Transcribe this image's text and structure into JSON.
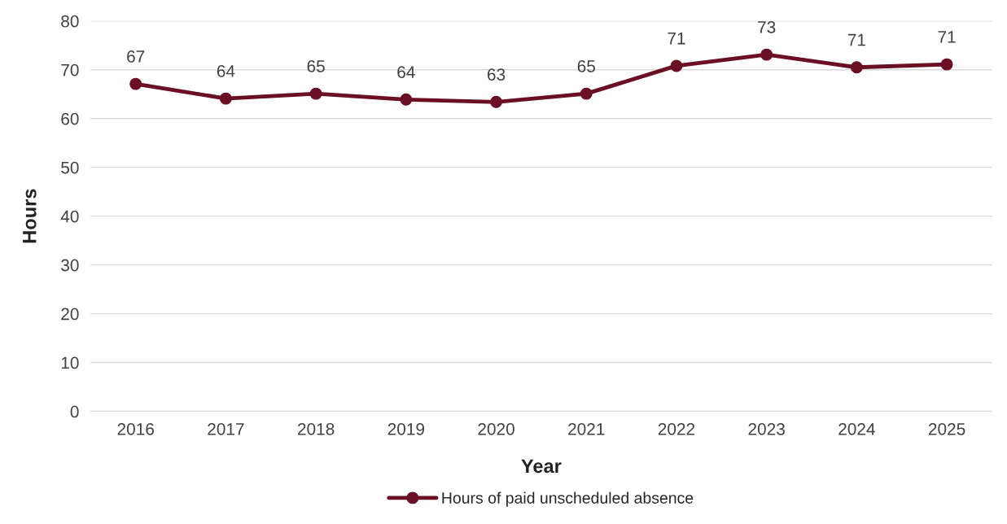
{
  "chart_data": {
    "type": "line",
    "xlabel": "Year",
    "ylabel": "Hours",
    "categories": [
      "2016",
      "2017",
      "2018",
      "2019",
      "2020",
      "2021",
      "2022",
      "2023",
      "2024",
      "2025"
    ],
    "series": [
      {
        "name": "Hours of paid unscheduled absence",
        "color": "#6b0f24",
        "values": [
          67.1,
          64.1,
          65.1,
          63.9,
          63.4,
          65.1,
          70.8,
          73.1,
          70.5,
          71.1
        ],
        "value_labels": [
          "67",
          "64",
          "65",
          "64",
          "63",
          "65",
          "71",
          "73",
          "71",
          "71"
        ]
      }
    ],
    "ylim": [
      0,
      80
    ],
    "yticks": [
      0,
      10,
      20,
      30,
      40,
      50,
      60,
      70,
      80
    ],
    "grid": "y",
    "legend": "bottom",
    "marker": "circle",
    "line_style": "solid"
  }
}
